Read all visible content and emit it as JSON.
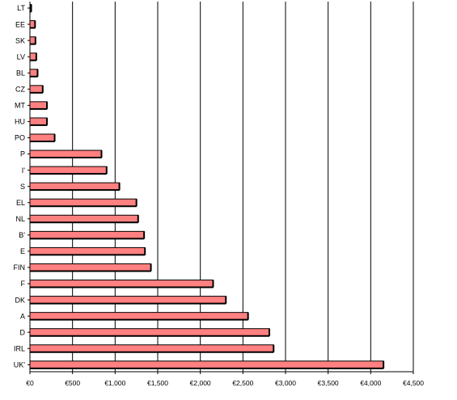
{
  "chart_data": {
    "type": "bar",
    "orientation": "horizontal",
    "title": "",
    "xlabel": "",
    "ylabel": "",
    "xlim": [
      0,
      4500
    ],
    "x_ticks": [
      0,
      500,
      1000,
      1500,
      2000,
      2500,
      3000,
      3500,
      4000,
      4500
    ],
    "x_tick_labels": [
      "€0",
      "€500",
      "€1,000",
      "€1,500",
      "€2,000",
      "€2,500",
      "€3,000",
      "€3,500",
      "€4,000",
      "€4,500"
    ],
    "grid": "vertical",
    "legend": "none",
    "bar_color": "#ff8080",
    "bar_edge_color": "#000000",
    "categories": [
      "LT",
      "EE",
      "SK",
      "LV",
      "BL",
      "CZ",
      "MT",
      "HU",
      "PO",
      "P",
      "I'",
      "S",
      "EL",
      "NL",
      "B'",
      "E",
      "FIN",
      "F",
      "DK",
      "A",
      "D",
      "IRL",
      "UK'"
    ],
    "values": [
      15,
      60,
      65,
      75,
      90,
      150,
      200,
      200,
      290,
      840,
      900,
      1050,
      1250,
      1270,
      1340,
      1350,
      1420,
      2150,
      2300,
      2560,
      2810,
      2860,
      4150
    ]
  }
}
